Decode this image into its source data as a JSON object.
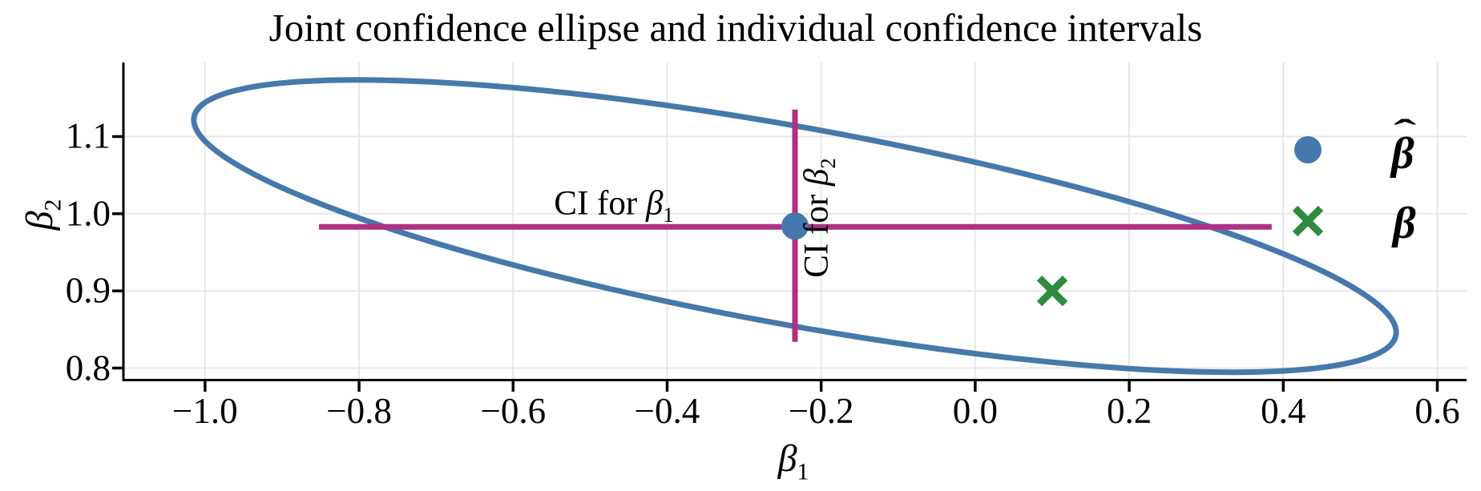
{
  "labels": {
    "title": "Joint confidence ellipse and individual confidence intervals",
    "x_axis": {
      "symbol": "β",
      "subscript": "1"
    },
    "y_axis": {
      "symbol": "β",
      "subscript": "2"
    },
    "ci_beta1": {
      "text": "CI for ",
      "symbol": "β",
      "subscript": "1"
    },
    "ci_beta2": {
      "text": "CI for ",
      "symbol": "β",
      "subscript": "2"
    },
    "legend": [
      {
        "label": "β",
        "hat": true,
        "marker": "circle",
        "color": "#4678ab"
      },
      {
        "label": "β",
        "hat": false,
        "marker": "x",
        "color": "#2e8b3d"
      }
    ]
  },
  "colors": {
    "ellipse_blue": "#4678ab",
    "ci_magenta": "#ad3183",
    "true_beta_green": "#2e8b3d",
    "grid": "#e7e7e7",
    "axis": "#000000"
  },
  "chart_data": {
    "type": "scatter",
    "title": "Joint confidence ellipse and individual confidence intervals",
    "xlabel": "beta_1",
    "ylabel": "beta_2",
    "xlim": [
      -1.106,
      0.638
    ],
    "ylim": [
      0.786,
      1.196
    ],
    "x_ticks": [
      -1.0,
      -0.8,
      -0.6,
      -0.4,
      -0.2,
      0.0,
      0.2,
      0.4,
      0.6
    ],
    "x_tick_labels": [
      "−1.0",
      "−0.8",
      "−0.6",
      "−0.4",
      "−0.2",
      "0.0",
      "0.2",
      "0.4",
      "0.6"
    ],
    "y_ticks": [
      0.8,
      0.9,
      1.0,
      1.1
    ],
    "y_tick_labels": [
      "0.8",
      "0.9",
      "1.0",
      "1.1"
    ],
    "grid": true,
    "points": [
      {
        "name": "beta_hat",
        "x": -0.234,
        "y": 0.984,
        "marker": "circle",
        "color": "#4678ab"
      },
      {
        "name": "beta_true",
        "x": 0.1,
        "y": 0.9,
        "marker": "x",
        "color": "#2e8b3d"
      }
    ],
    "ellipse": {
      "name": "joint_confidence_ellipse",
      "center": [
        -0.234,
        0.984
      ],
      "semi_major": 0.793,
      "semi_minor": 0.128,
      "angle_deg": -10.3,
      "color": "#4678ab"
    },
    "ci_beta1": {
      "y": 0.983,
      "x_range": [
        -0.852,
        0.385
      ],
      "color": "#ad3183"
    },
    "ci_beta2": {
      "x": -0.234,
      "y_range": [
        0.834,
        1.135
      ],
      "color": "#ad3183"
    },
    "legend_position": "right"
  }
}
